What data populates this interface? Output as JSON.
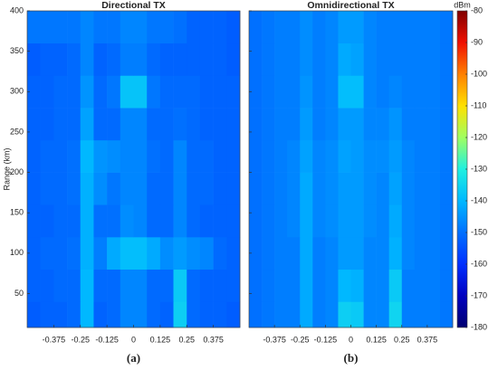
{
  "chart_data": [
    {
      "type": "heatmap",
      "title": "Directional TX",
      "caption": "(a)",
      "ylabel": "Range (km)",
      "xlim": [
        -0.5,
        0.5
      ],
      "ylim": [
        8,
        400
      ],
      "xticks": [
        -0.375,
        -0.25,
        -0.125,
        0,
        0.125,
        0.25,
        0.375
      ],
      "yticks": [
        50,
        100,
        150,
        200,
        250,
        300,
        350,
        400
      ],
      "ytick_labels": true,
      "x": [
        -0.5,
        -0.4375,
        -0.375,
        -0.3125,
        -0.25,
        -0.1875,
        -0.125,
        -0.0625,
        0,
        0.0625,
        0.125,
        0.1875,
        0.25,
        0.3125,
        0.375,
        0.4375,
        0.5
      ],
      "y": [
        8,
        40,
        80,
        120,
        160,
        200,
        240,
        280,
        320,
        360,
        400
      ],
      "z": [
        [
          -153,
          -152,
          -152,
          -151,
          -140,
          -152,
          -151,
          -147,
          -147,
          -151,
          -152,
          -136,
          -151,
          -152,
          -152,
          -153
        ],
        [
          -152,
          -152,
          -151,
          -151,
          -140,
          -151,
          -151,
          -147,
          -147,
          -151,
          -151,
          -137,
          -151,
          -152,
          -152,
          -152
        ],
        [
          -152,
          -151,
          -151,
          -150,
          -141,
          -148,
          -142,
          -139,
          -139,
          -142,
          -146,
          -144,
          -146,
          -147,
          -151,
          -152
        ],
        [
          -152,
          -152,
          -151,
          -151,
          -141,
          -150,
          -150,
          -146,
          -147,
          -151,
          -151,
          -147,
          -151,
          -152,
          -152,
          -152
        ],
        [
          -152,
          -151,
          -151,
          -150,
          -141,
          -146,
          -149,
          -147,
          -147,
          -151,
          -151,
          -147,
          -151,
          -151,
          -152,
          -152
        ],
        [
          -152,
          -151,
          -151,
          -150,
          -140,
          -145,
          -146,
          -147,
          -147,
          -150,
          -151,
          -147,
          -151,
          -151,
          -152,
          -152
        ],
        [
          -152,
          -152,
          -151,
          -151,
          -143,
          -151,
          -151,
          -147,
          -147,
          -151,
          -151,
          -150,
          -151,
          -152,
          -152,
          -152
        ],
        [
          -152,
          -152,
          -151,
          -151,
          -145,
          -151,
          -149,
          -138,
          -138,
          -149,
          -151,
          -151,
          -151,
          -152,
          -152,
          -152
        ],
        [
          -153,
          -152,
          -152,
          -151,
          -147,
          -152,
          -151,
          -148,
          -148,
          -151,
          -152,
          -152,
          -152,
          -152,
          -152,
          -153
        ],
        [
          -149,
          -149,
          -149,
          -149,
          -147,
          -149,
          -149,
          -147,
          -147,
          -149,
          -149,
          -150,
          -152,
          -152,
          -152,
          -153
        ]
      ]
    },
    {
      "type": "heatmap",
      "title": "Omnidirectional TX",
      "caption": "(b)",
      "xlim": [
        -0.5,
        0.5
      ],
      "ylim": [
        8,
        400
      ],
      "xticks": [
        -0.375,
        -0.25,
        -0.125,
        0,
        0.125,
        0.25,
        0.375
      ],
      "yticks": [
        50,
        100,
        150,
        200,
        250,
        300,
        350,
        400
      ],
      "ytick_labels": false,
      "x": [
        -0.5,
        -0.4375,
        -0.375,
        -0.3125,
        -0.25,
        -0.1875,
        -0.125,
        -0.0625,
        0,
        0.0625,
        0.125,
        0.1875,
        0.25,
        0.3125,
        0.375,
        0.4375,
        0.5
      ],
      "y": [
        8,
        40,
        80,
        120,
        160,
        200,
        240,
        280,
        320,
        360,
        400
      ],
      "z": [
        [
          -150,
          -149,
          -148,
          -148,
          -142,
          -148,
          -147,
          -136,
          -137,
          -147,
          -147,
          -135,
          -148,
          -148,
          -148,
          -149
        ],
        [
          -150,
          -149,
          -148,
          -148,
          -142,
          -148,
          -147,
          -140,
          -141,
          -147,
          -147,
          -137,
          -148,
          -148,
          -148,
          -149
        ],
        [
          -150,
          -149,
          -148,
          -148,
          -142,
          -148,
          -147,
          -144,
          -144,
          -147,
          -147,
          -141,
          -147,
          -148,
          -148,
          -149
        ],
        [
          -150,
          -149,
          -148,
          -147,
          -142,
          -147,
          -146,
          -144,
          -144,
          -146,
          -147,
          -142,
          -147,
          -148,
          -148,
          -149
        ],
        [
          -150,
          -149,
          -148,
          -147,
          -142,
          -147,
          -146,
          -144,
          -144,
          -146,
          -147,
          -143,
          -147,
          -148,
          -148,
          -149
        ],
        [
          -150,
          -149,
          -148,
          -147,
          -143,
          -147,
          -146,
          -143,
          -144,
          -146,
          -146,
          -144,
          -147,
          -148,
          -148,
          -149
        ],
        [
          -150,
          -149,
          -148,
          -148,
          -144,
          -148,
          -147,
          -144,
          -144,
          -147,
          -147,
          -145,
          -148,
          -148,
          -148,
          -149
        ],
        [
          -150,
          -149,
          -148,
          -148,
          -145,
          -148,
          -147,
          -139,
          -139,
          -147,
          -148,
          -147,
          -148,
          -148,
          -148,
          -149
        ],
        [
          -150,
          -149,
          -148,
          -148,
          -146,
          -148,
          -147,
          -142,
          -143,
          -147,
          -148,
          -148,
          -148,
          -148,
          -148,
          -149
        ],
        [
          -150,
          -149,
          -148,
          -148,
          -146,
          -148,
          -147,
          -144,
          -144,
          -147,
          -148,
          -148,
          -148,
          -148,
          -148,
          -149
        ]
      ]
    }
  ],
  "colorbar": {
    "label": "dBm",
    "zlim": [
      -180,
      -80
    ],
    "ticks": [
      -180,
      -170,
      -160,
      -150,
      -140,
      -130,
      -120,
      -110,
      -100,
      -90,
      -80
    ],
    "colormap": [
      "#000070",
      "#0000c0",
      "#0030ff",
      "#0070ff",
      "#00b8ff",
      "#20f0e0",
      "#a0ff60",
      "#ffe000",
      "#ff8000",
      "#f01000",
      "#800000"
    ]
  }
}
